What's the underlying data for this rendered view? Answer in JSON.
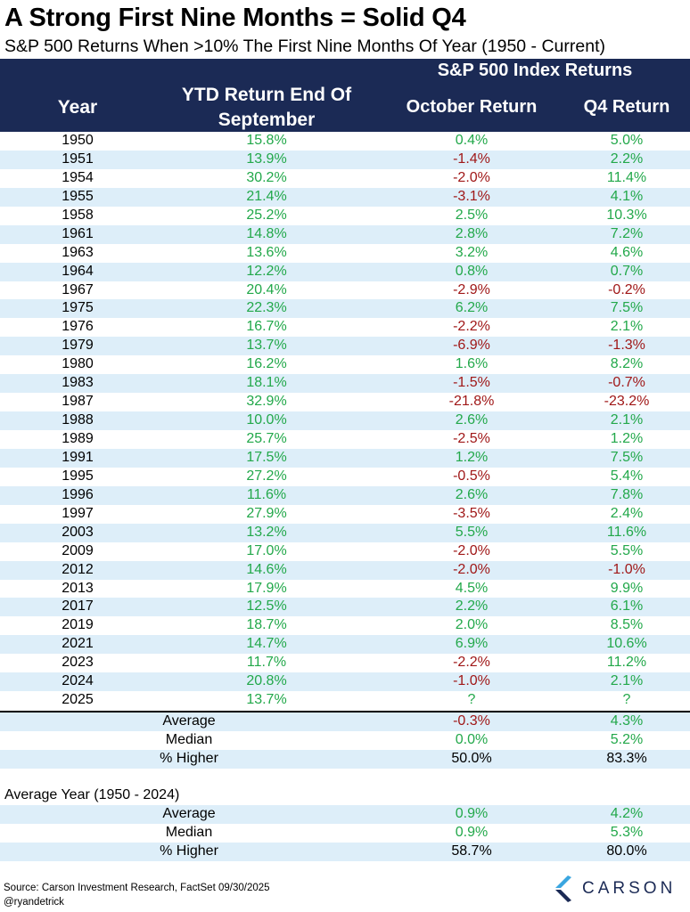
{
  "title": "A Strong First Nine Months = Solid Q4",
  "subtitle": "S&P 500 Returns When >10% The First Nine Months Of Year (1950 - Current)",
  "header": {
    "group": "S&P 500 Index Returns",
    "year": "Year",
    "ytd": "YTD Return End Of September",
    "oct": "October Return",
    "q4": "Q4 Return"
  },
  "colors": {
    "header_bg": "#1b2a55",
    "row_shade": "#ddeef9",
    "positive": "#22a84a",
    "negative": "#a01818"
  },
  "chart_data": {
    "type": "table",
    "title": "A Strong First Nine Months = Solid Q4",
    "subtitle": "S&P 500 Returns When >10% The First Nine Months Of Year (1950 - Current)",
    "columns": [
      "Year",
      "YTD Return End Of September",
      "October Return",
      "Q4 Return"
    ],
    "rows": [
      {
        "year": "1950",
        "ytd": "15.8%",
        "oct": "0.4%",
        "q4": "5.0%"
      },
      {
        "year": "1951",
        "ytd": "13.9%",
        "oct": "-1.4%",
        "q4": "2.2%"
      },
      {
        "year": "1954",
        "ytd": "30.2%",
        "oct": "-2.0%",
        "q4": "11.4%"
      },
      {
        "year": "1955",
        "ytd": "21.4%",
        "oct": "-3.1%",
        "q4": "4.1%"
      },
      {
        "year": "1958",
        "ytd": "25.2%",
        "oct": "2.5%",
        "q4": "10.3%"
      },
      {
        "year": "1961",
        "ytd": "14.8%",
        "oct": "2.8%",
        "q4": "7.2%"
      },
      {
        "year": "1963",
        "ytd": "13.6%",
        "oct": "3.2%",
        "q4": "4.6%"
      },
      {
        "year": "1964",
        "ytd": "12.2%",
        "oct": "0.8%",
        "q4": "0.7%"
      },
      {
        "year": "1967",
        "ytd": "20.4%",
        "oct": "-2.9%",
        "q4": "-0.2%"
      },
      {
        "year": "1975",
        "ytd": "22.3%",
        "oct": "6.2%",
        "q4": "7.5%"
      },
      {
        "year": "1976",
        "ytd": "16.7%",
        "oct": "-2.2%",
        "q4": "2.1%"
      },
      {
        "year": "1979",
        "ytd": "13.7%",
        "oct": "-6.9%",
        "q4": "-1.3%"
      },
      {
        "year": "1980",
        "ytd": "16.2%",
        "oct": "1.6%",
        "q4": "8.2%"
      },
      {
        "year": "1983",
        "ytd": "18.1%",
        "oct": "-1.5%",
        "q4": "-0.7%"
      },
      {
        "year": "1987",
        "ytd": "32.9%",
        "oct": "-21.8%",
        "q4": "-23.2%"
      },
      {
        "year": "1988",
        "ytd": "10.0%",
        "oct": "2.6%",
        "q4": "2.1%"
      },
      {
        "year": "1989",
        "ytd": "25.7%",
        "oct": "-2.5%",
        "q4": "1.2%"
      },
      {
        "year": "1991",
        "ytd": "17.5%",
        "oct": "1.2%",
        "q4": "7.5%"
      },
      {
        "year": "1995",
        "ytd": "27.2%",
        "oct": "-0.5%",
        "q4": "5.4%"
      },
      {
        "year": "1996",
        "ytd": "11.6%",
        "oct": "2.6%",
        "q4": "7.8%"
      },
      {
        "year": "1997",
        "ytd": "27.9%",
        "oct": "-3.5%",
        "q4": "2.4%"
      },
      {
        "year": "2003",
        "ytd": "13.2%",
        "oct": "5.5%",
        "q4": "11.6%"
      },
      {
        "year": "2009",
        "ytd": "17.0%",
        "oct": "-2.0%",
        "q4": "5.5%"
      },
      {
        "year": "2012",
        "ytd": "14.6%",
        "oct": "-2.0%",
        "q4": "-1.0%"
      },
      {
        "year": "2013",
        "ytd": "17.9%",
        "oct": "4.5%",
        "q4": "9.9%"
      },
      {
        "year": "2017",
        "ytd": "12.5%",
        "oct": "2.2%",
        "q4": "6.1%"
      },
      {
        "year": "2019",
        "ytd": "18.7%",
        "oct": "2.0%",
        "q4": "8.5%"
      },
      {
        "year": "2021",
        "ytd": "14.7%",
        "oct": "6.9%",
        "q4": "10.6%"
      },
      {
        "year": "2023",
        "ytd": "11.7%",
        "oct": "-2.2%",
        "q4": "11.2%"
      },
      {
        "year": "2024",
        "ytd": "20.8%",
        "oct": "-1.0%",
        "q4": "2.1%"
      },
      {
        "year": "2025",
        "ytd": "13.7%",
        "oct": "?",
        "q4": "?"
      }
    ],
    "summary": [
      {
        "label": "Average",
        "oct": "-0.3%",
        "q4": "4.3%"
      },
      {
        "label": "Median",
        "oct": "0.0%",
        "q4": "5.2%"
      },
      {
        "label": "% Higher",
        "oct": "50.0%",
        "q4": "83.3%"
      }
    ],
    "average_year_label": "Average Year (1950 - 2024)",
    "average_year": [
      {
        "label": "Average",
        "oct": "0.9%",
        "q4": "4.2%"
      },
      {
        "label": "Median",
        "oct": "0.9%",
        "q4": "5.3%"
      },
      {
        "label": "% Higher",
        "oct": "58.7%",
        "q4": "80.0%"
      }
    ]
  },
  "footer": {
    "source": "Source: Carson Investment Research, FactSet 09/30/2025",
    "handle": "@ryandetrick",
    "logo_text": "CARSON"
  }
}
